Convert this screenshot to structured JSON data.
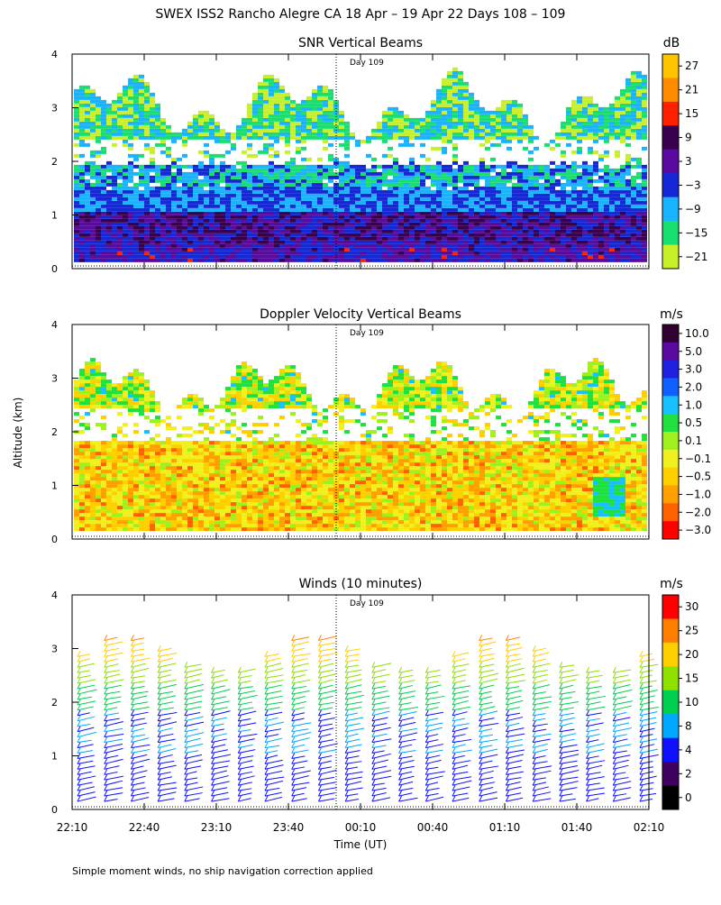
{
  "header": {
    "title": "SWEX ISS2 Rancho Alegre CA  18 Apr – 19 Apr 22 Days 108 – 109",
    "footnote": "Simple moment winds, no ship navigation correction applied"
  },
  "shared_axes": {
    "ylabel": "Altitude (km)",
    "xlabel": "Time (UT)",
    "y_ticks": [
      "0",
      "1",
      "2",
      "3",
      "4"
    ],
    "x_ticks": [
      "22:10",
      "22:40",
      "23:10",
      "23:40",
      "00:10",
      "00:40",
      "01:10",
      "01:40",
      "02:10"
    ],
    "day_marker": "Day 109"
  },
  "chart_data": [
    {
      "type": "heatmap",
      "title": "SNR Vertical Beams",
      "unit": "dB",
      "ylim": [
        0,
        4
      ],
      "x_range": [
        "22:10",
        "02:10"
      ],
      "colorbar": {
        "labels": [
          "27",
          "21",
          "15",
          "9",
          "3",
          "−3",
          "−9",
          "−15",
          "−21"
        ],
        "colors": [
          "#ffc400",
          "#ff8c00",
          "#ff2000",
          "#3a0050",
          "#5a0aa0",
          "#1428d8",
          "#18b4ff",
          "#18e070",
          "#c8f028"
        ]
      }
    },
    {
      "type": "heatmap",
      "title": "Doppler Velocity Vertical Beams",
      "unit": "m/s",
      "ylim": [
        0,
        4
      ],
      "x_range": [
        "22:10",
        "02:10"
      ],
      "colorbar": {
        "labels": [
          "10.0",
          "5.0",
          "3.0",
          "2.0",
          "1.0",
          "0.5",
          "0.1",
          "−0.1",
          "−0.5",
          "−1.0",
          "−2.0",
          "−3.0"
        ],
        "colors": [
          "#300030",
          "#5a0aa0",
          "#2020e0",
          "#1060ff",
          "#18c0ff",
          "#20e040",
          "#a0f020",
          "#f0f020",
          "#ffd000",
          "#ffa000",
          "#ff6000",
          "#ff0000"
        ]
      }
    },
    {
      "type": "scatter",
      "title": "Winds (10 minutes)",
      "unit": "m/s",
      "ylim": [
        0,
        4
      ],
      "x_range": [
        "22:10",
        "02:10"
      ],
      "colorbar": {
        "labels": [
          "30",
          "25",
          "20",
          "15",
          "10",
          "8",
          "4",
          "2",
          "0"
        ],
        "colors": [
          "#ff0000",
          "#ff8000",
          "#ffd000",
          "#90e000",
          "#00d050",
          "#00a8ff",
          "#1010ff",
          "#400060",
          "#000000"
        ]
      }
    }
  ]
}
